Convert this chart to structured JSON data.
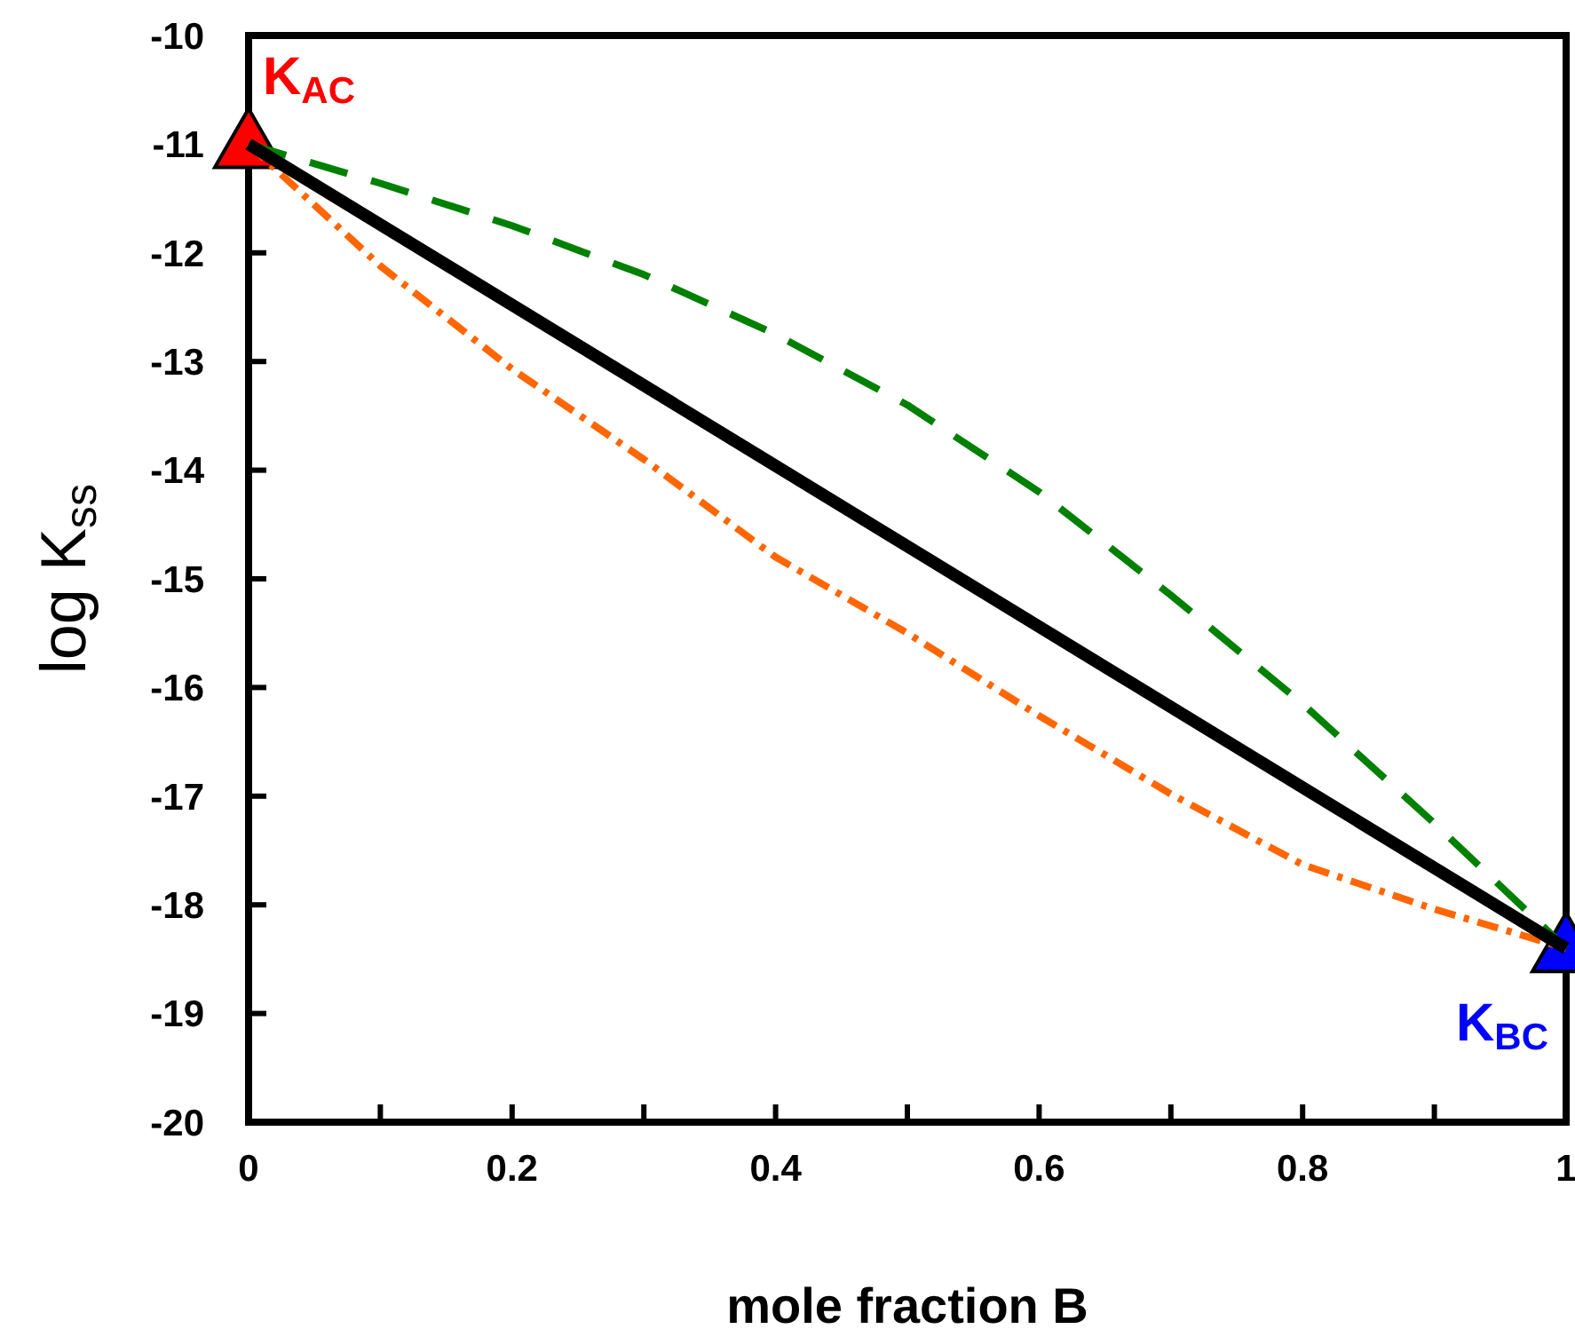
{
  "chart_data": {
    "type": "line",
    "xlabel": "mole fraction B",
    "ylabel": "log K$_{ss}$",
    "xlim": [
      0,
      1
    ],
    "ylim": [
      -20,
      -10
    ],
    "xticks": [
      0,
      {
        "value": 0.1,
        "label": null
      },
      {
        "value": 0.2,
        "label": "0.2"
      },
      {
        "value": 0.3,
        "label": null
      },
      {
        "value": 0.4,
        "label": "0.4"
      },
      {
        "value": 0.5,
        "label": null
      },
      {
        "value": 0.6,
        "label": "0.6"
      },
      {
        "value": 0.7,
        "label": null
      },
      {
        "value": 0.8,
        "label": "0.8"
      },
      {
        "value": 0.9,
        "label": null
      },
      1
    ],
    "yticks": [
      -20,
      -19,
      -18,
      -17,
      -16,
      -15,
      -14,
      -13,
      -12,
      -11,
      -10
    ],
    "grid": false,
    "legend": false,
    "series": [
      {
        "color": "#008000",
        "line_style": "dashed",
        "x": [
          0,
          0.1,
          0.2,
          0.3,
          0.4,
          0.5,
          0.6,
          0.7,
          0.8,
          0.9,
          1
        ],
        "values": [
          -11,
          -11.36,
          -11.75,
          -12.2,
          -12.75,
          -13.4,
          -14.2,
          -15.15,
          -16.15,
          -17.25,
          -18.4
        ]
      },
      {
        "color": "#ff6600",
        "line_style": "dotted",
        "x": [
          0,
          0.1,
          0.2,
          0.3,
          0.4,
          0.5,
          0.6,
          0.7,
          0.8,
          0.9,
          1
        ],
        "values": [
          -11,
          -12.12,
          -13.07,
          -13.9,
          -14.8,
          -15.5,
          -16.26,
          -16.98,
          -17.63,
          -18.04,
          -18.4
        ]
      },
      {
        "color": "#000000",
        "line_style": "solid",
        "x": [
          0,
          1
        ],
        "values": [
          -11,
          -18.4
        ]
      },
      {
        "type": "scatter",
        "name": "K$_{AC}$",
        "color": "#ff0000",
        "marker": "triangle",
        "x": [
          0
        ],
        "values": [
          -11
        ]
      },
      {
        "type": "scatter",
        "name": "K$_{BC}$",
        "color": "#0000ff",
        "marker": "triangle",
        "x": [
          1
        ],
        "values": [
          -18.4
        ]
      }
    ]
  }
}
